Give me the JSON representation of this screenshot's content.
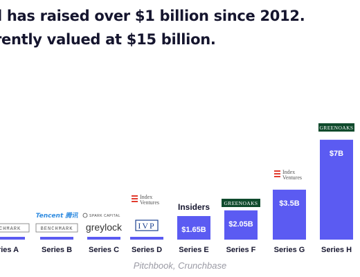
{
  "headline": {
    "line1": "l has raised over $1 billion since 2012.",
    "line2": "rently valued at $15 billion."
  },
  "source": "Pitchbook, Crunchbase",
  "colors": {
    "bar": "#5b5bf2",
    "text": "#15152e",
    "source": "#9a9aa4",
    "greenoaks": "#0f4a2c",
    "index": "#e23b2e"
  },
  "chart_data": {
    "type": "bar",
    "categories": [
      "Series A",
      "Series B",
      "Series C",
      "Series D",
      "Series E",
      "Series F",
      "Series G",
      "Series H"
    ],
    "values": [
      null,
      null,
      null,
      null,
      1.65,
      2.05,
      3.5,
      7
    ],
    "value_labels": [
      "",
      "",
      "",
      "",
      "$1.65B",
      "$2.05B",
      "$3.5B",
      "$7B"
    ],
    "investors": [
      {
        "text": "NCHMARK",
        "logo": "benchmark-logo"
      },
      {
        "text": "BENCHMARK",
        "logo": "benchmark-logo",
        "above": "Tencent 腾讯"
      },
      {
        "text": "greylock",
        "logo": "greylock-logo",
        "above": "SPARK CAPITAL"
      },
      {
        "text": "IVP",
        "logo": "ivp-logo",
        "above": "Index Ventures"
      },
      {
        "text": "Insiders",
        "logo": "text"
      },
      {
        "text": "GREENOAKS",
        "logo": "greenoaks-logo"
      },
      {
        "text": "Index Ventures",
        "logo": "index-ventures-logo"
      },
      {
        "text": "GREENOAKS",
        "logo": "greenoaks-logo"
      }
    ],
    "x_labels": [
      "ries A",
      "Series B",
      "Series C",
      "Series D",
      "Series E",
      "Series F",
      "Series G",
      "Series H"
    ],
    "units": "$ billions"
  }
}
